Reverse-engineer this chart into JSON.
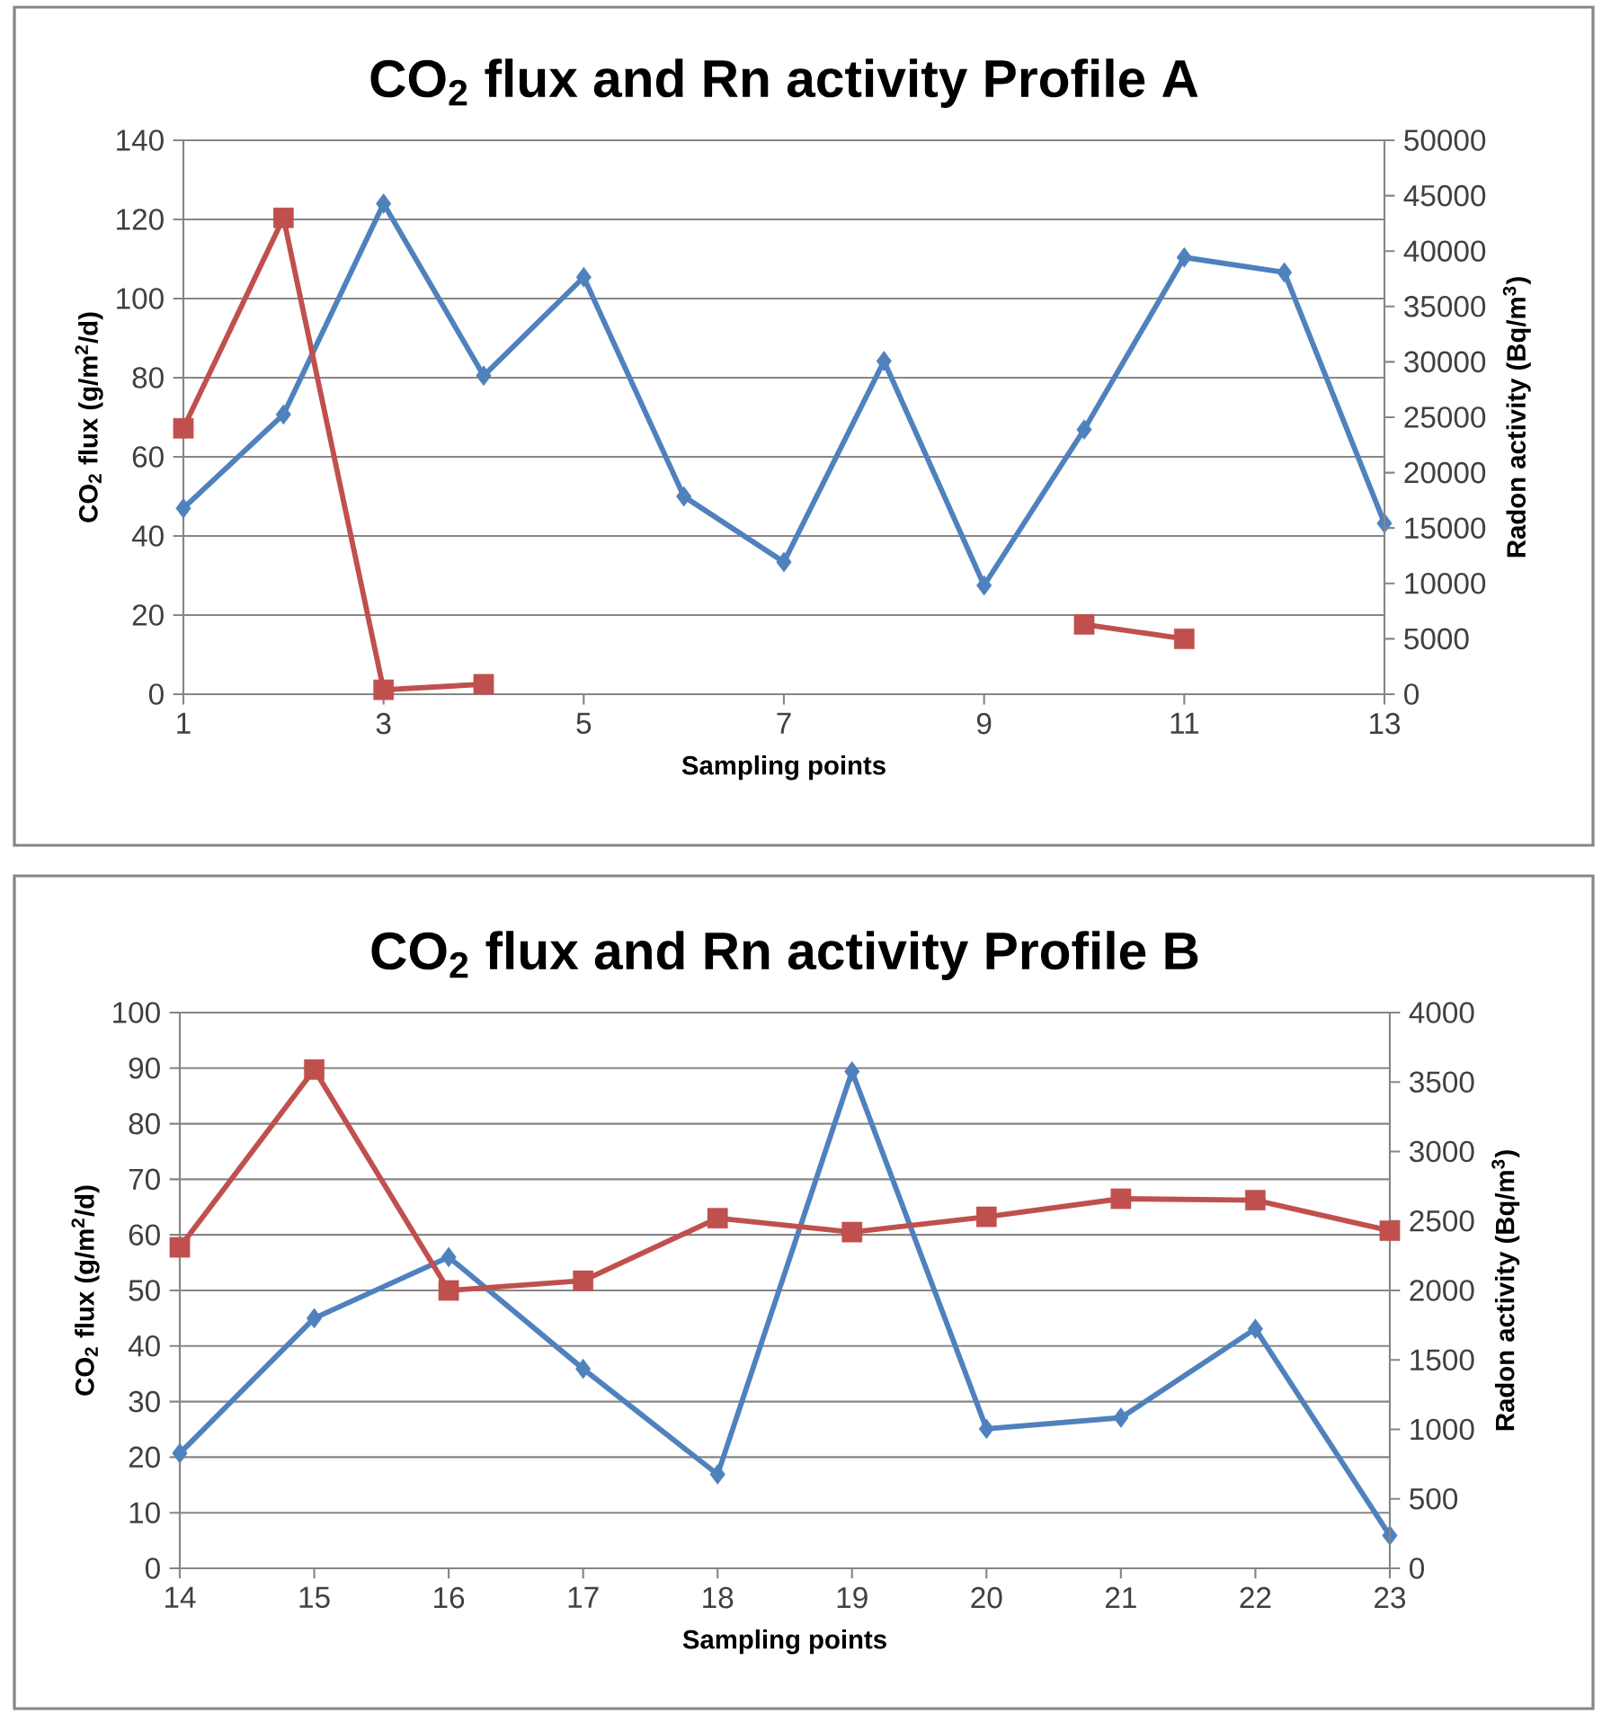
{
  "chart_data": [
    {
      "type": "line",
      "title": "CO$_{2}$ flux and Rn activity Profile A",
      "xlabel": "Sampling points",
      "ylabel": "CO$_{2}$ flux (g/m$^{2}$/d)",
      "y2label": "Radon activity (Bq/m$^{3}$)",
      "x": [
        1,
        2,
        3,
        4,
        5,
        6,
        7,
        8,
        9,
        10,
        11,
        12,
        13
      ],
      "xlim": [
        1,
        13
      ],
      "xticks": [
        1,
        3,
        5,
        7,
        9,
        11,
        13
      ],
      "ylim": [
        0,
        140
      ],
      "yticks": [
        0,
        20,
        40,
        60,
        80,
        100,
        120,
        140
      ],
      "y2lim": [
        0,
        50000
      ],
      "y2ticks": [
        0,
        5000,
        10000,
        15000,
        20000,
        25000,
        30000,
        35000,
        40000,
        45000,
        50000
      ],
      "grid": "y",
      "line_style": "solid",
      "series": [
        {
          "color": "#4f81bd",
          "marker": "diamond",
          "values": [
            47,
            70.7,
            124,
            80.5,
            105.4,
            50,
            33.4,
            84.2,
            27.5,
            66.9,
            110.4,
            106.6,
            43.2
          ]
        },
        {
          "color": "#c0504d",
          "marker": "square",
          "axis": "y2",
          "values": [
            24000,
            43000,
            400,
            900,
            null,
            null,
            null,
            null,
            null,
            6300,
            5000,
            null,
            null
          ]
        }
      ]
    },
    {
      "type": "line",
      "title": "CO$_{2}$ flux and Rn activity Profile B",
      "xlabel": "Sampling points",
      "ylabel": "CO$_{2}$ flux (g/m$^{2}$/d)",
      "y2label": "Radon activity (Bq/m$^{3}$)",
      "x": [
        14,
        15,
        16,
        17,
        18,
        19,
        20,
        21,
        22,
        23
      ],
      "xlim": [
        14,
        23
      ],
      "xticks": [
        14,
        15,
        16,
        17,
        18,
        19,
        20,
        21,
        22,
        23
      ],
      "ylim": [
        0,
        100
      ],
      "yticks": [
        0,
        10,
        20,
        30,
        40,
        50,
        60,
        70,
        80,
        90,
        100
      ],
      "y2lim": [
        0,
        4000
      ],
      "y2ticks": [
        0,
        500,
        1000,
        1500,
        2000,
        2500,
        3000,
        3500,
        4000
      ],
      "grid": "y",
      "line_style": "solid",
      "series": [
        {
          "color": "#4f81bd",
          "marker": "diamond",
          "values": [
            20.7,
            45,
            56,
            35.9,
            16.9,
            89.4,
            25.1,
            27.1,
            43.1,
            5.9
          ]
        },
        {
          "color": "#c0504d",
          "marker": "square",
          "axis": "y2",
          "values": [
            2310,
            3590,
            2000,
            2070,
            2520,
            2420,
            2530,
            2660,
            2650,
            2430
          ]
        }
      ]
    }
  ]
}
